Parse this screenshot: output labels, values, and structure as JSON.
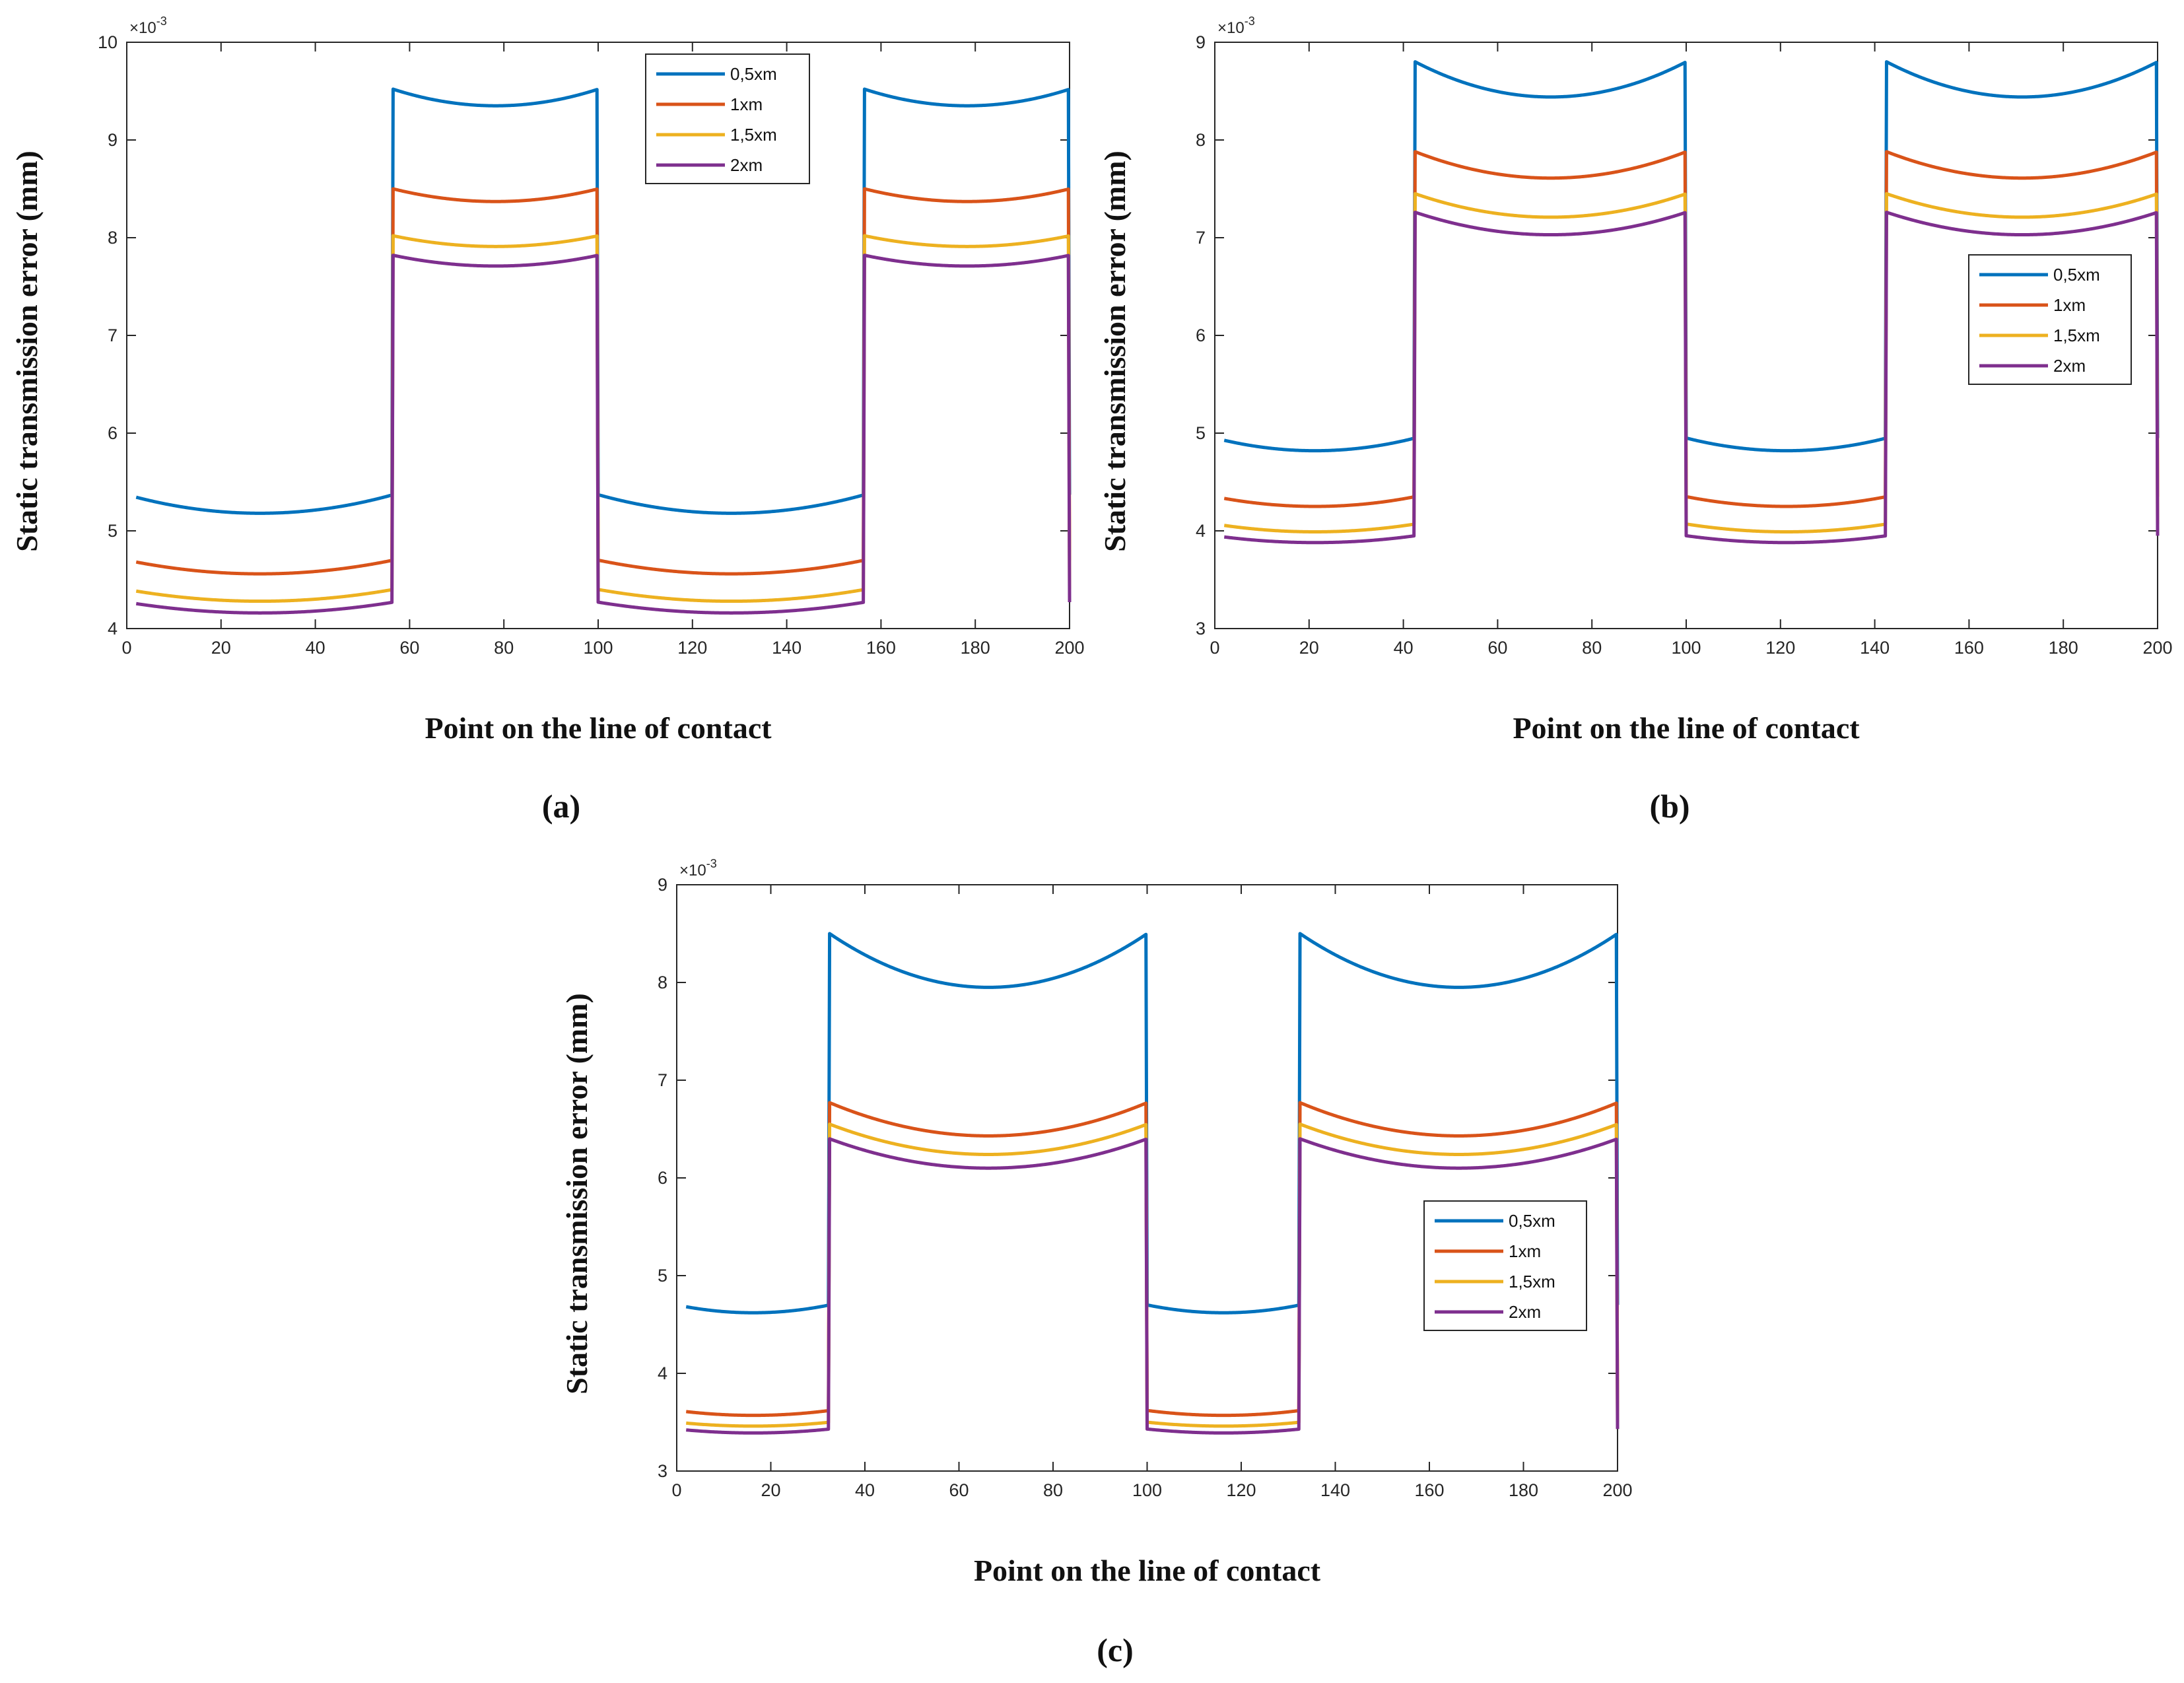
{
  "chart_data": [
    {
      "type": "line",
      "panel_label": "(a)",
      "title": "",
      "xlabel": "Point on the line of contact",
      "ylabel": "Static transmission error (mm)",
      "y_multiplier": "×10",
      "y_exponent": "-3",
      "xlim": [
        0,
        200
      ],
      "ylim": [
        4,
        10
      ],
      "xticks": [
        "0",
        "20",
        "40",
        "60",
        "80",
        "100",
        "120",
        "140",
        "160",
        "180",
        "200"
      ],
      "yticks": [
        "4",
        "5",
        "6",
        "7",
        "8",
        "9",
        "10"
      ],
      "legend_position": "top-right",
      "period": 100,
      "x_start": 2,
      "switch": 56.5,
      "x_end": 200,
      "series": [
        {
          "name": "0,5xm",
          "color": "#0072BD",
          "low_edge": 5.37,
          "low_min": 5.18,
          "high_edge": 9.52,
          "high_min": 9.35
        },
        {
          "name": "1xm",
          "color": "#D95319",
          "low_edge": 4.7,
          "low_min": 4.56,
          "high_edge": 8.5,
          "high_min": 8.37
        },
        {
          "name": "1,5xm",
          "color": "#EDB120",
          "low_edge": 4.4,
          "low_min": 4.28,
          "high_edge": 8.02,
          "high_min": 7.91
        },
        {
          "name": "2xm",
          "color": "#7E2F8E",
          "low_edge": 4.27,
          "low_min": 4.16,
          "high_edge": 7.82,
          "high_min": 7.71
        }
      ]
    },
    {
      "type": "line",
      "panel_label": "(b)",
      "title": "",
      "xlabel": "Point on the line of contact",
      "ylabel": "Static transmission error (mm)",
      "y_multiplier": "×10",
      "y_exponent": "-3",
      "xlim": [
        0,
        200
      ],
      "ylim": [
        3,
        9
      ],
      "xticks": [
        "0",
        "20",
        "40",
        "60",
        "80",
        "100",
        "120",
        "140",
        "160",
        "180",
        "200"
      ],
      "yticks": [
        "3",
        "4",
        "5",
        "6",
        "7",
        "8",
        "9"
      ],
      "legend_position": "right",
      "period": 100,
      "x_start": 2,
      "switch": 42.5,
      "x_end": 200,
      "series": [
        {
          "name": "0,5xm",
          "color": "#0072BD",
          "low_edge": 4.95,
          "low_min": 4.82,
          "high_edge": 8.8,
          "high_min": 8.44
        },
        {
          "name": "1xm",
          "color": "#D95319",
          "low_edge": 4.35,
          "low_min": 4.25,
          "high_edge": 7.88,
          "high_min": 7.61
        },
        {
          "name": "1,5xm",
          "color": "#EDB120",
          "low_edge": 4.07,
          "low_min": 3.99,
          "high_edge": 7.45,
          "high_min": 7.21
        },
        {
          "name": "2xm",
          "color": "#7E2F8E",
          "low_edge": 3.95,
          "low_min": 3.88,
          "high_edge": 7.26,
          "high_min": 7.03
        }
      ]
    },
    {
      "type": "line",
      "panel_label": "(c)",
      "title": "",
      "xlabel": "Point on the line of contact",
      "ylabel": "Static transmission error (mm)",
      "y_multiplier": "×10",
      "y_exponent": "-3",
      "xlim": [
        0,
        200
      ],
      "ylim": [
        3,
        9
      ],
      "xticks": [
        "0",
        "20",
        "40",
        "60",
        "80",
        "100",
        "120",
        "140",
        "160",
        "180",
        "200"
      ],
      "yticks": [
        "3",
        "4",
        "5",
        "6",
        "7",
        "8",
        "9"
      ],
      "legend_position": "right",
      "period": 100,
      "x_start": 2,
      "switch": 32.5,
      "x_end": 200,
      "series": [
        {
          "name": "0,5xm",
          "color": "#0072BD",
          "low_edge": 4.7,
          "low_min": 4.62,
          "high_edge": 8.5,
          "high_min": 7.95
        },
        {
          "name": "1xm",
          "color": "#D95319",
          "low_edge": 3.62,
          "low_min": 3.57,
          "high_edge": 6.77,
          "high_min": 6.43
        },
        {
          "name": "1,5xm",
          "color": "#EDB120",
          "low_edge": 3.5,
          "low_min": 3.46,
          "high_edge": 6.55,
          "high_min": 6.24
        },
        {
          "name": "2xm",
          "color": "#7E2F8E",
          "low_edge": 3.43,
          "low_min": 3.39,
          "high_edge": 6.4,
          "high_min": 6.1
        }
      ]
    }
  ]
}
